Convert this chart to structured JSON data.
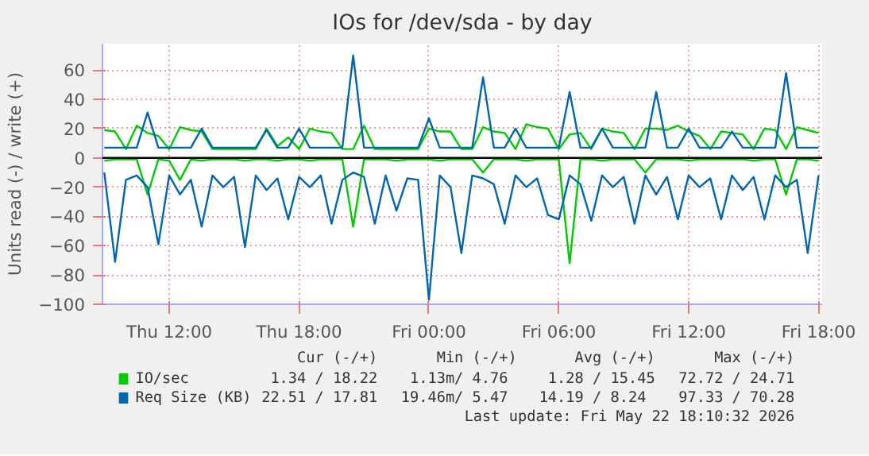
{
  "chart_data": {
    "type": "line",
    "title": "IOs for /dev/sda - by day",
    "ylabel": "Units read (-) / write (+)",
    "x": [
      "2026-05-21T09:00",
      "2026-05-21T09:30",
      "2026-05-21T10:00",
      "2026-05-21T10:30",
      "2026-05-21T11:00",
      "2026-05-21T11:30",
      "2026-05-21T12:00",
      "2026-05-21T12:30",
      "2026-05-21T13:00",
      "2026-05-21T13:30",
      "2026-05-21T14:00",
      "2026-05-21T14:30",
      "2026-05-21T15:00",
      "2026-05-21T15:30",
      "2026-05-21T16:00",
      "2026-05-21T16:30",
      "2026-05-21T17:00",
      "2026-05-21T17:30",
      "2026-05-21T18:00",
      "2026-05-21T18:30",
      "2026-05-21T19:00",
      "2026-05-21T19:30",
      "2026-05-21T20:00",
      "2026-05-21T20:30",
      "2026-05-21T21:00",
      "2026-05-21T21:30",
      "2026-05-21T22:00",
      "2026-05-21T22:30",
      "2026-05-21T23:00",
      "2026-05-21T23:30",
      "2026-05-22T00:00",
      "2026-05-22T00:30",
      "2026-05-22T01:00",
      "2026-05-22T01:30",
      "2026-05-22T02:00",
      "2026-05-22T02:30",
      "2026-05-22T03:00",
      "2026-05-22T03:30",
      "2026-05-22T04:00",
      "2026-05-22T04:30",
      "2026-05-22T05:00",
      "2026-05-22T05:30",
      "2026-05-22T06:00",
      "2026-05-22T06:30",
      "2026-05-22T07:00",
      "2026-05-22T07:30",
      "2026-05-22T08:00",
      "2026-05-22T08:30",
      "2026-05-22T09:00",
      "2026-05-22T09:30",
      "2026-05-22T10:00",
      "2026-05-22T10:30",
      "2026-05-22T11:00",
      "2026-05-22T11:30",
      "2026-05-22T12:00",
      "2026-05-22T12:30",
      "2026-05-22T13:00",
      "2026-05-22T13:30",
      "2026-05-22T14:00",
      "2026-05-22T14:30",
      "2026-05-22T15:00",
      "2026-05-22T15:30",
      "2026-05-22T16:00",
      "2026-05-22T16:30",
      "2026-05-22T17:00",
      "2026-05-22T17:30",
      "2026-05-22T18:00"
    ],
    "series": [
      {
        "name": "IO/sec",
        "color": "#00cc00",
        "values": [
          19,
          18,
          6,
          22,
          17,
          15,
          6,
          21,
          19,
          18,
          6,
          6,
          6,
          6,
          6,
          20,
          8,
          14,
          6,
          20,
          18,
          17,
          6,
          6,
          22,
          6,
          6,
          6,
          6,
          6,
          20,
          18,
          18,
          6,
          6,
          21,
          18,
          17,
          6,
          23,
          21,
          20,
          6,
          16,
          17,
          6,
          20,
          18,
          17,
          6,
          20,
          20,
          19,
          22,
          18,
          15,
          6,
          18,
          17,
          16,
          6,
          20,
          19,
          6,
          21,
          19,
          17
        ]
      },
      {
        "color": "#00cc00",
        "values": [
          -2,
          -1,
          -1,
          -1,
          -25,
          -1,
          -2,
          -15,
          -1,
          -2,
          -1,
          -1,
          -1,
          -2,
          -1,
          -1,
          -2,
          -1,
          -1,
          -2,
          -1,
          -1,
          -1,
          -47,
          -1,
          -1,
          -1,
          -2,
          -1,
          -1,
          -1,
          -2,
          -1,
          -1,
          -1,
          -10,
          -1,
          -1,
          -1,
          -2,
          -1,
          -1,
          -1,
          -72,
          -1,
          -1,
          -2,
          -1,
          -1,
          -1,
          -10,
          -1,
          -1,
          -1,
          -2,
          -1,
          -1,
          -1,
          -1,
          -1,
          -2,
          -1,
          -1,
          -25,
          -1,
          -1,
          -2
        ]
      },
      {
        "name": "Req Size (KB)",
        "color": "#0066b3",
        "values": [
          7,
          7,
          7,
          7,
          31,
          7,
          7,
          7,
          7,
          20,
          7,
          7,
          7,
          7,
          7,
          19,
          7,
          7,
          20,
          7,
          7,
          7,
          7,
          70,
          7,
          7,
          7,
          7,
          7,
          7,
          27,
          7,
          7,
          7,
          7,
          55,
          7,
          7,
          20,
          7,
          7,
          7,
          7,
          45,
          7,
          7,
          20,
          7,
          7,
          7,
          7,
          45,
          7,
          7,
          20,
          7,
          7,
          7,
          18,
          7,
          7,
          7,
          7,
          58,
          7,
          7,
          7
        ]
      },
      {
        "color": "#0066b3",
        "values": [
          -10,
          -71,
          -15,
          -12,
          -20,
          -59,
          -12,
          -25,
          -15,
          -47,
          -12,
          -20,
          -13,
          -61,
          -12,
          -22,
          -14,
          -42,
          -13,
          -20,
          -12,
          -45,
          -15,
          -10,
          -13,
          -45,
          -12,
          -36,
          -14,
          -15,
          -97,
          -12,
          -20,
          -65,
          -12,
          -14,
          -18,
          -45,
          -12,
          -20,
          -14,
          -39,
          -42,
          -12,
          -18,
          -43,
          -12,
          -20,
          -13,
          -45,
          -12,
          -25,
          -13,
          -42,
          -12,
          -20,
          -14,
          -42,
          -12,
          -22,
          -13,
          -42,
          -12,
          -20,
          -15,
          -65,
          -12
        ]
      }
    ],
    "xlim": [
      "2026-05-21T08:55",
      "2026-05-22T18:10"
    ],
    "xticks": [
      {
        "value": "2026-05-21T12:00",
        "label": "Thu 12:00"
      },
      {
        "value": "2026-05-21T18:00",
        "label": "Thu 18:00"
      },
      {
        "value": "2026-05-22T00:00",
        "label": "Fri 00:00"
      },
      {
        "value": "2026-05-22T06:00",
        "label": "Fri 06:00"
      },
      {
        "value": "2026-05-22T12:00",
        "label": "Fri 12:00"
      },
      {
        "value": "2026-05-22T18:00",
        "label": "Fri 18:00"
      }
    ],
    "ylim": [
      -100,
      78
    ],
    "yticks": [
      -100,
      -80,
      -60,
      -40,
      -20,
      0,
      20,
      40,
      60
    ],
    "grid": true,
    "legend": "bottom",
    "ref_lines": [
      {
        "axis": "y",
        "value": 0,
        "color": "#000000"
      }
    ],
    "annotations": [
      "Cur (-/+)",
      "Min (-/+)",
      "Avg (-/+)",
      "Max (-/+)",
      "1.34 / 18.22",
      "1.13m/  4.76",
      "1.28 / 15.45",
      "72.72 / 24.71",
      "22.51 / 17.81",
      "19.46m/  5.47",
      "14.19 /  8.24",
      "97.33 / 70.28",
      "Last update: Fri May 22 18:10:32 2026"
    ]
  }
}
